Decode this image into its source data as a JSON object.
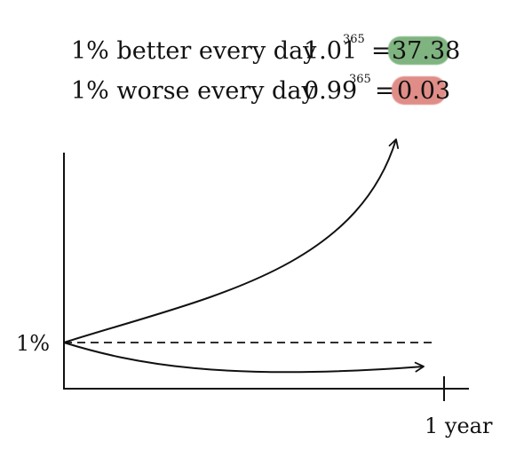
{
  "formulas": {
    "better": {
      "label": "1% better every day",
      "base": "1.01",
      "exponent": "365",
      "equals": "=",
      "result": "37.38",
      "highlight_color": "#7fb481"
    },
    "worse": {
      "label": "1% worse every day",
      "base": "0.99",
      "exponent": "365",
      "equals": "=",
      "result": "0.03",
      "highlight_color": "#e08d88"
    }
  },
  "axes": {
    "y_tick_label": "1%",
    "x_tick_label": "1 year"
  },
  "colors": {
    "ink": "#111111",
    "background": "#ffffff"
  }
}
